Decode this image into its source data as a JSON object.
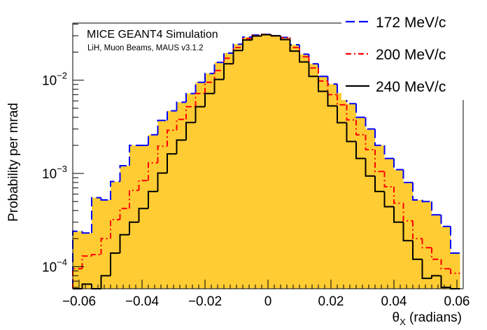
{
  "chart_data": {
    "type": "histogram",
    "title": "",
    "annotation": {
      "title": "MICE GEANT4 Simulation",
      "subtitle": "LiH, Muon Beams, MAUS v3.1.2"
    },
    "xlabel": "θ",
    "xlabel_sub": "X",
    "xlabel_unit": " (radians)",
    "ylabel": "Probability per mrad",
    "xlim": [
      -0.062,
      0.062
    ],
    "ylim": [
      5.8e-05,
      0.041
    ],
    "yscale": "log",
    "grid": false,
    "legend_position": "top-right",
    "x_ticks": [
      {
        "value": -0.06,
        "label": "−0.06"
      },
      {
        "value": -0.04,
        "label": "−0.04"
      },
      {
        "value": -0.02,
        "label": "−0.02"
      },
      {
        "value": 0,
        "label": "0"
      },
      {
        "value": 0.02,
        "label": "0.02"
      },
      {
        "value": 0.04,
        "label": "0.04"
      },
      {
        "value": 0.06,
        "label": "0.06"
      }
    ],
    "y_ticks": [
      {
        "value": 0.0001,
        "base": "10",
        "exp": "−4"
      },
      {
        "value": 0.001,
        "base": "10",
        "exp": "−3"
      },
      {
        "value": 0.01,
        "base": "10",
        "exp": "−2"
      }
    ],
    "bin_edges": [
      -0.062,
      -0.059,
      -0.056,
      -0.053,
      -0.05,
      -0.047,
      -0.044,
      -0.041,
      -0.038,
      -0.035,
      -0.032,
      -0.029,
      -0.026,
      -0.023,
      -0.02,
      -0.017,
      -0.014,
      -0.011,
      -0.008,
      -0.005,
      -0.002,
      0.001,
      0.004,
      0.007,
      0.01,
      0.013,
      0.016,
      0.019,
      0.022,
      0.025,
      0.028,
      0.031,
      0.034,
      0.037,
      0.04,
      0.043,
      0.046,
      0.049,
      0.052,
      0.055,
      0.058,
      0.061
    ],
    "series": [
      {
        "name": "172 MeV/c",
        "color": "#0000ff",
        "style": "dashed",
        "filled": true,
        "fill_color": "#ffcc33",
        "values": [
          0.00024,
          0.00023,
          0.00055,
          0.00052,
          0.00082,
          0.00121,
          0.002,
          0.002,
          0.0026,
          0.0037,
          0.0047,
          0.0058,
          0.0072,
          0.0095,
          0.0118,
          0.0155,
          0.0195,
          0.0243,
          0.029,
          0.0305,
          0.031,
          0.03,
          0.0288,
          0.024,
          0.019,
          0.015,
          0.011,
          0.0091,
          0.0073,
          0.0056,
          0.004,
          0.003,
          0.002,
          0.00145,
          0.0011,
          0.0008,
          0.00052,
          0.0005,
          0.00036,
          0.00027,
          0.00014
        ]
      },
      {
        "name": "200 MeV/c",
        "color": "#ff0000",
        "style": "dash-dot",
        "filled": false,
        "values": [
          9.5e-05,
          0.00013,
          0.000135,
          0.0002,
          0.00032,
          0.00042,
          0.00066,
          0.00084,
          0.0013,
          0.00196,
          0.0029,
          0.0038,
          0.0052,
          0.0072,
          0.0095,
          0.0127,
          0.0172,
          0.0224,
          0.028,
          0.0302,
          0.031,
          0.03,
          0.0285,
          0.0224,
          0.0178,
          0.0135,
          0.0098,
          0.007,
          0.00545,
          0.00375,
          0.0026,
          0.0018,
          0.00105,
          0.00072,
          0.00048,
          0.00031,
          0.0002,
          0.00016,
          0.00012,
          9.5e-05,
          8.5e-05
        ]
      },
      {
        "name": "240 MeV/c",
        "color": "#000000",
        "style": "solid",
        "filled": false,
        "values": [
          5e-05,
          6.5e-05,
          5e-05,
          8e-05,
          0.00014,
          0.00022,
          0.0003,
          0.00042,
          0.00064,
          0.00101,
          0.00162,
          0.00228,
          0.00352,
          0.0052,
          0.0072,
          0.0102,
          0.015,
          0.0208,
          0.027,
          0.0298,
          0.0308,
          0.0299,
          0.0273,
          0.0205,
          0.0157,
          0.011,
          0.0076,
          0.0053,
          0.0035,
          0.0022,
          0.00145,
          0.00094,
          0.00064,
          0.00044,
          0.0003,
          0.00019,
          0.00012,
          7.5e-05,
          8e-05,
          6e-05,
          5e-05
        ]
      }
    ]
  }
}
